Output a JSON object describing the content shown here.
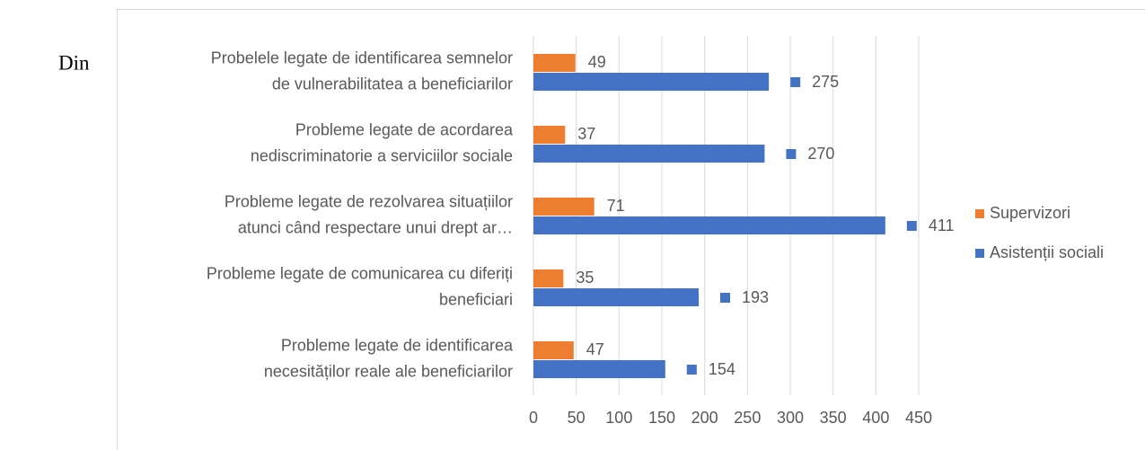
{
  "page_text": "Din",
  "chart_data": {
    "type": "hbar",
    "categories": [
      "Probelele legate de identificarea semnelor\nde vulnerabilitatea a beneficiarilor",
      "Probleme legate de acordarea\nnediscriminatorie a serviciilor sociale",
      "Probleme legate de rezolvarea situațiilor\natunci când respectare unui drept ar…",
      "Probleme legate de comunicarea cu diferiți\nbeneficiari",
      "Probleme legate de identificarea\nnecesităților reale ale beneficiarilor"
    ],
    "series": [
      {
        "name": "Supervizori",
        "color": "#ED7D31",
        "values": [
          49,
          37,
          71,
          35,
          47
        ]
      },
      {
        "name": "Asistenții sociali",
        "color": "#4472C4",
        "values": [
          275,
          270,
          411,
          193,
          154
        ]
      }
    ],
    "xlim": [
      0,
      450
    ],
    "xticks": [
      0,
      50,
      100,
      150,
      200,
      250,
      300,
      350,
      400,
      450
    ],
    "grid": true,
    "legend": "right"
  }
}
